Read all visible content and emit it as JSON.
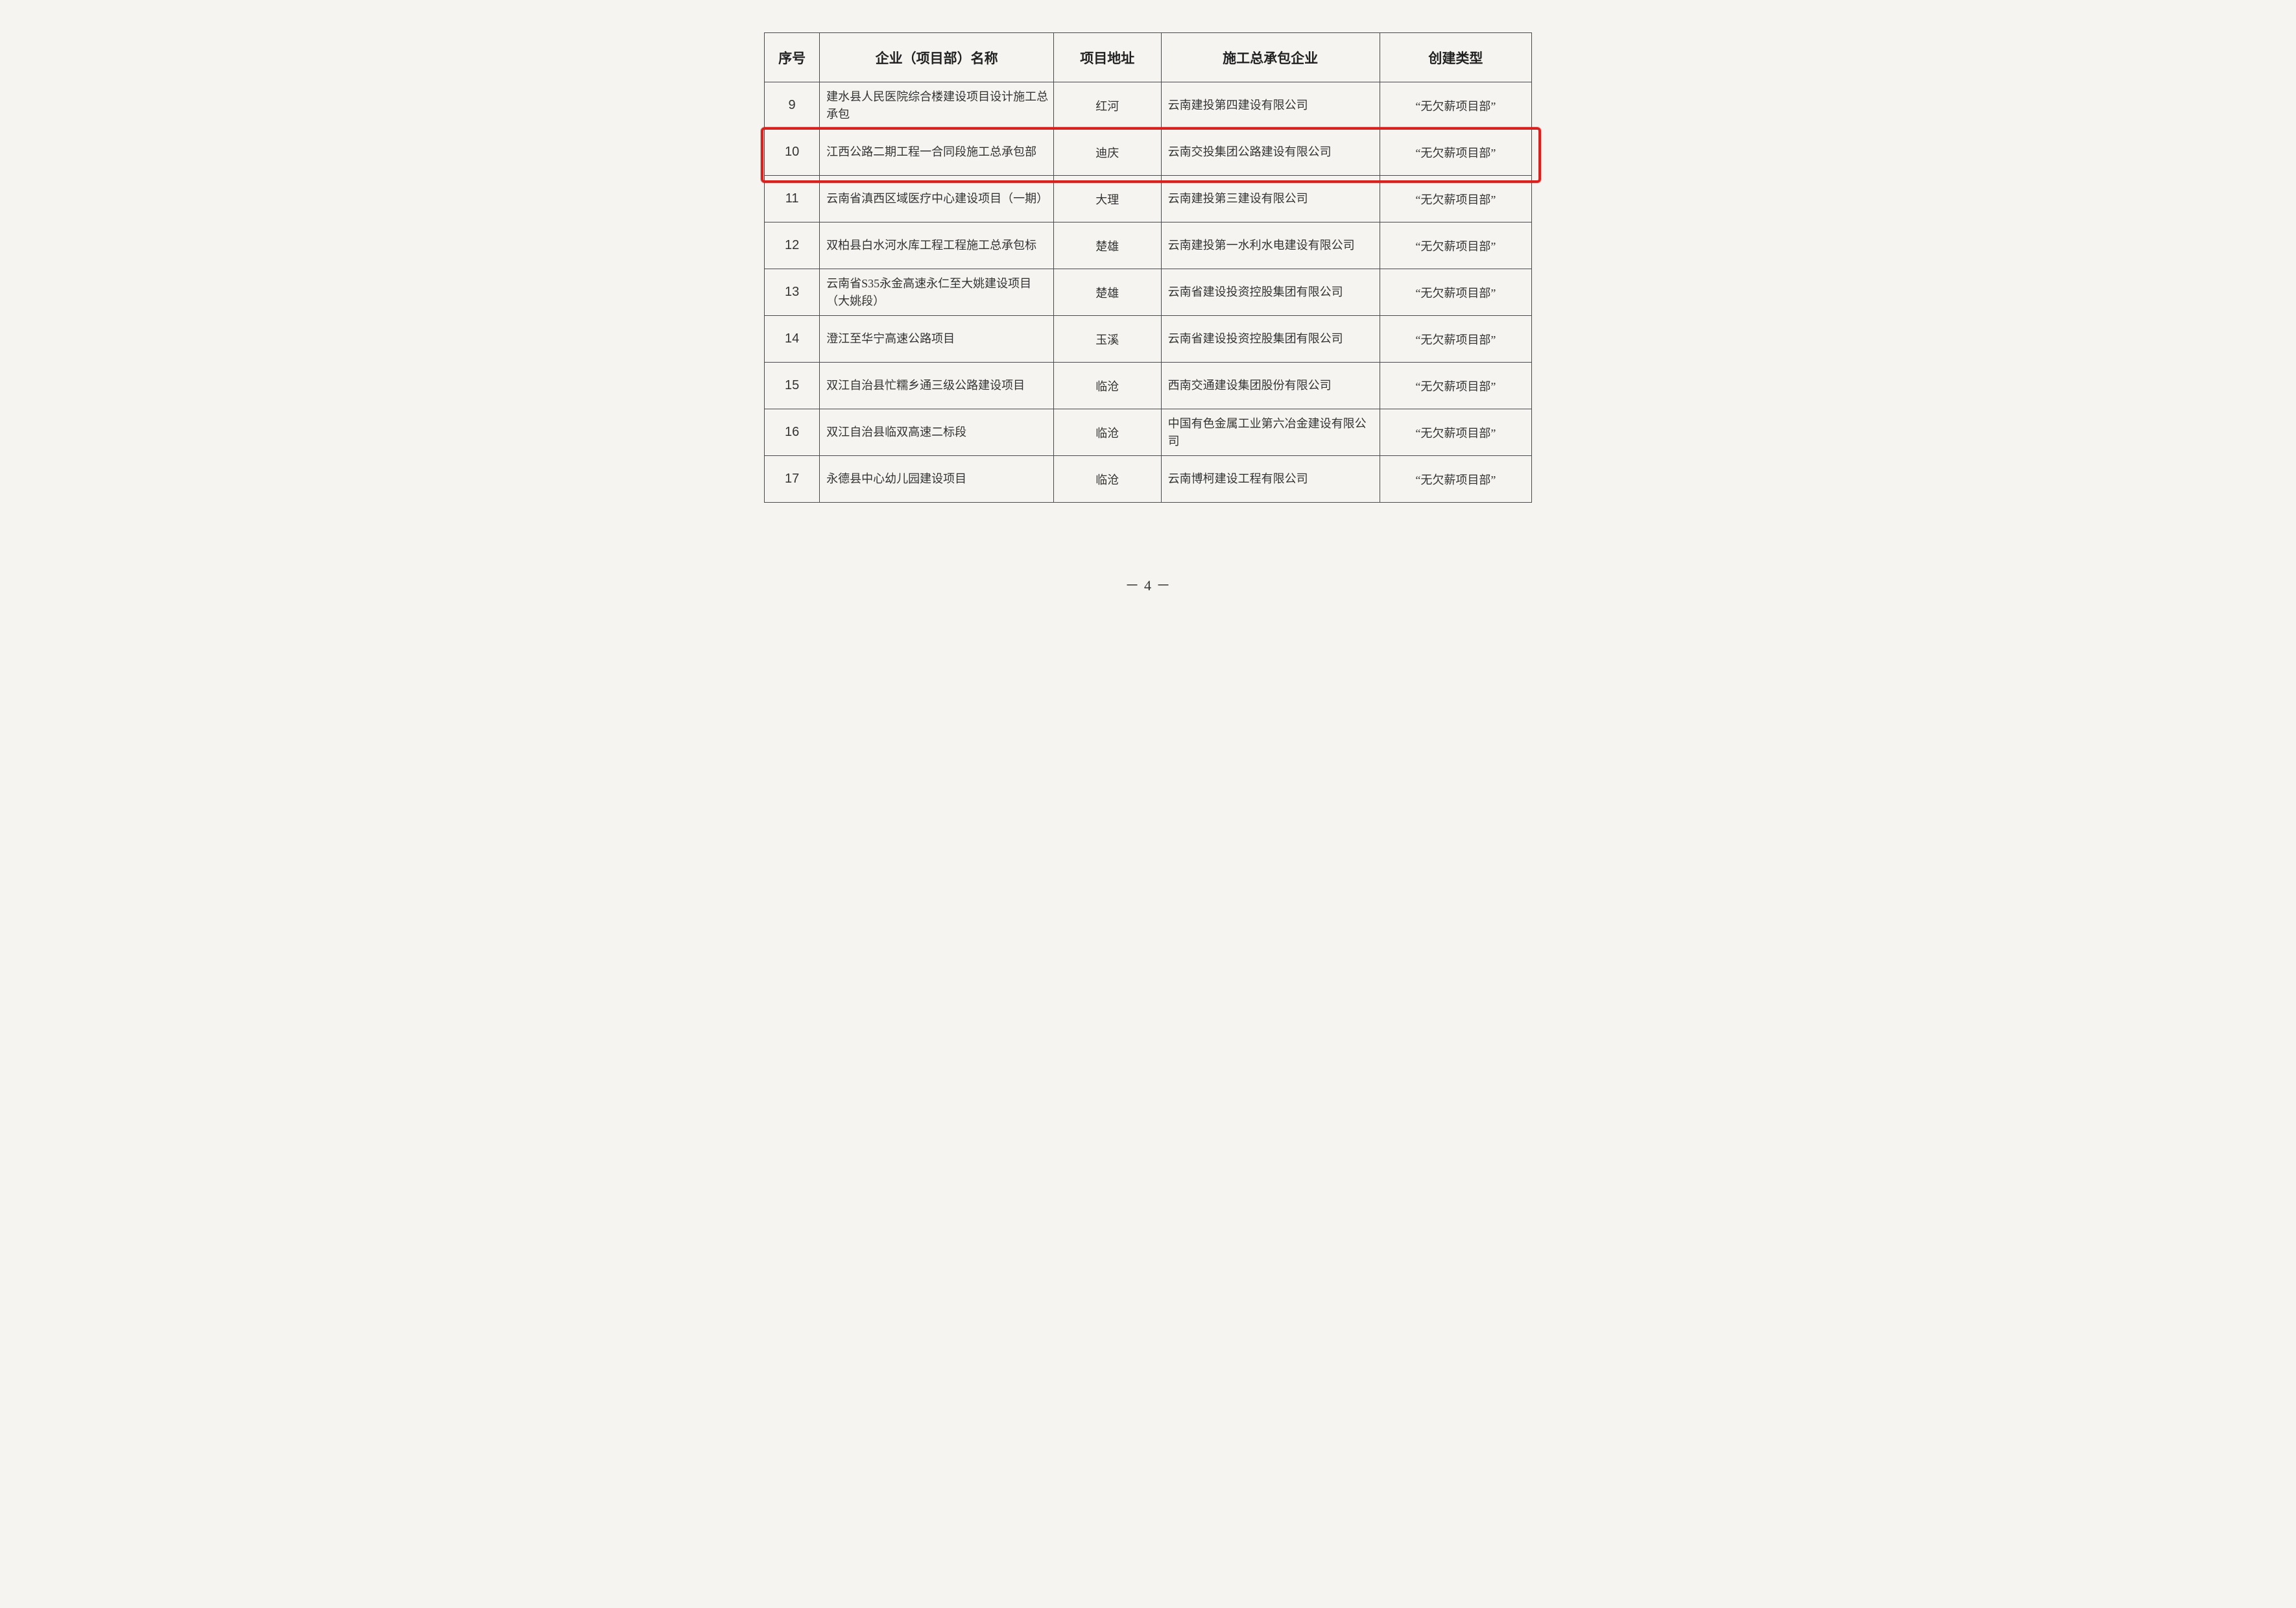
{
  "table": {
    "headers": {
      "idx": "序号",
      "name": "企业（项目部）名称",
      "addr": "项目地址",
      "comp": "施工总承包企业",
      "type": "创建类型"
    },
    "rows": [
      {
        "idx": "9",
        "name": "建水县人民医院综合楼建设项目设计施工总承包",
        "addr": "红河",
        "comp": "云南建投第四建设有限公司",
        "type": "“无欠薪项目部”",
        "highlight": false
      },
      {
        "idx": "10",
        "name": "江西公路二期工程一合同段施工总承包部",
        "addr": "迪庆",
        "comp": "云南交投集团公路建设有限公司",
        "type": "“无欠薪项目部”",
        "highlight": true
      },
      {
        "idx": "11",
        "name": "云南省滇西区域医疗中心建设项目（一期）",
        "addr": "大理",
        "comp": "云南建投第三建设有限公司",
        "type": "“无欠薪项目部”",
        "highlight": false
      },
      {
        "idx": "12",
        "name": "双柏县白水河水库工程工程施工总承包标",
        "addr": "楚雄",
        "comp": "云南建投第一水利水电建设有限公司",
        "type": "“无欠薪项目部”",
        "highlight": false
      },
      {
        "idx": "13",
        "name": "云南省S35永金高速永仁至大姚建设项目（大姚段）",
        "addr": "楚雄",
        "comp": "云南省建设投资控股集团有限公司",
        "type": "“无欠薪项目部”",
        "highlight": false
      },
      {
        "idx": "14",
        "name": "澄江至华宁高速公路项目",
        "addr": "玉溪",
        "comp": "云南省建设投资控股集团有限公司",
        "type": "“无欠薪项目部”",
        "highlight": false
      },
      {
        "idx": "15",
        "name": "双江自治县忙糯乡通三级公路建设项目",
        "addr": "临沧",
        "comp": "西南交通建设集团股份有限公司",
        "type": "“无欠薪项目部”",
        "highlight": false
      },
      {
        "idx": "16",
        "name": "双江自治县临双高速二标段",
        "addr": "临沧",
        "comp": "中国有色金属工业第六冶金建设有限公司",
        "type": "“无欠薪项目部”",
        "highlight": false
      },
      {
        "idx": "17",
        "name": "永德县中心幼儿园建设项目",
        "addr": "临沧",
        "comp": "云南博柯建设工程有限公司",
        "type": "“无欠薪项目部”",
        "highlight": false
      }
    ]
  },
  "highlight_color": "#d8221f",
  "page_number": "－ 4 －"
}
